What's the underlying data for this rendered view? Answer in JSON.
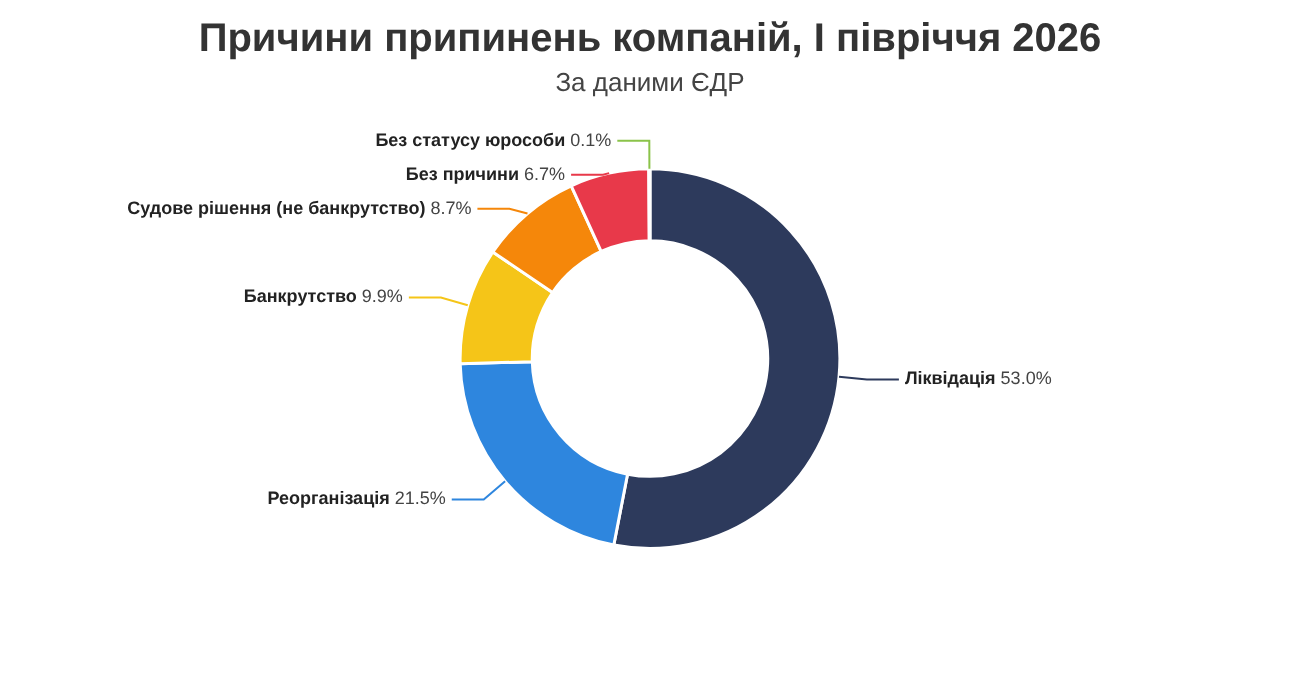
{
  "chart_data": {
    "type": "donut",
    "title": "Причини припинень компаній, І півріччя 2026",
    "subtitle": "За даними ЄДР",
    "categories": [
      "Ліквідація",
      "Реорганізація",
      "Банкрутство",
      "Судове рішення (не банкрутство)",
      "Без причини",
      "Без статусу юрособи"
    ],
    "values": [
      53.0,
      21.5,
      9.9,
      8.7,
      6.7,
      0.1
    ],
    "colors": [
      "#2d3a5c",
      "#2e86de",
      "#f5c518",
      "#f5870a",
      "#e8394a",
      "#8bc34a"
    ],
    "value_labels": [
      "53.0%",
      "21.5%",
      "9.9%",
      "8.7%",
      "6.7%",
      "0.1%"
    ],
    "legend": false
  }
}
